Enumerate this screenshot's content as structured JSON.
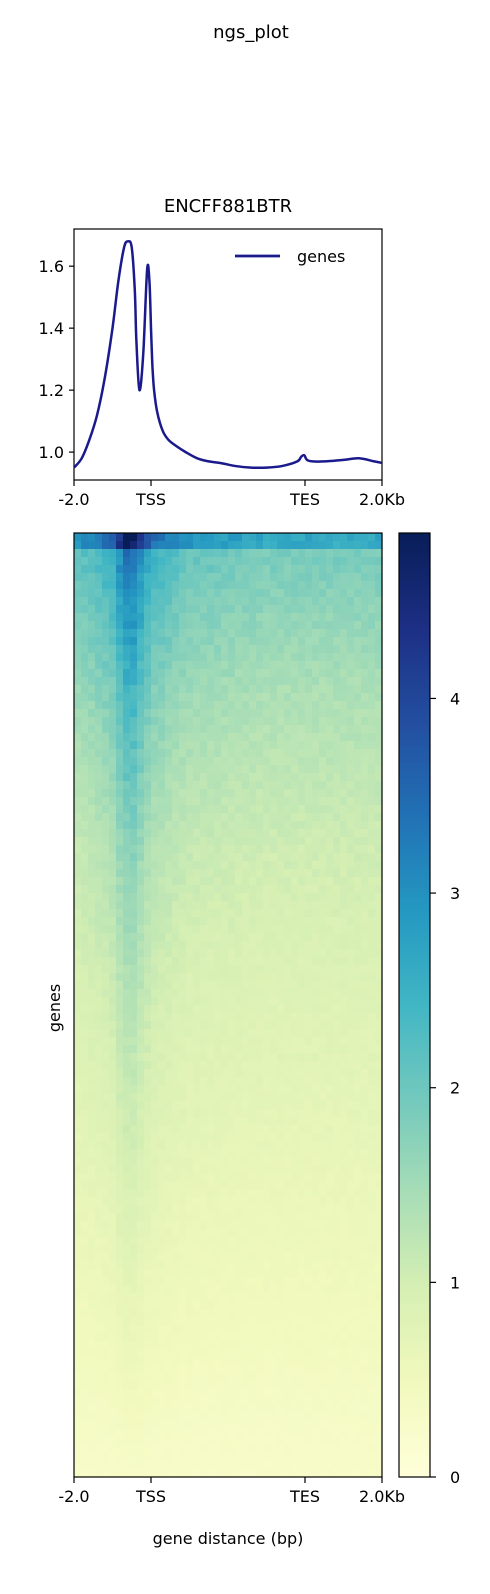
{
  "figure": {
    "suptitle": "ngs_plot"
  },
  "chart_data": [
    {
      "type": "line",
      "title": "ENCFF881BTR",
      "xlabel": "",
      "ylabel": "",
      "x_tick_labels": [
        "-2.0",
        "TSS",
        "TES",
        "2.0Kb"
      ],
      "x_tick_positions": [
        -2000,
        0,
        4000,
        6000
      ],
      "xlim": [
        -2000,
        6000
      ],
      "ylim": [
        0.91,
        1.72
      ],
      "y_ticks": [
        1.0,
        1.2,
        1.4,
        1.6
      ],
      "y_tick_labels": [
        "1.0",
        "1.2",
        "1.4",
        "1.6"
      ],
      "legend_position": "top-right",
      "series": [
        {
          "name": "genes",
          "color": "#1a1a8c",
          "x": [
            -2000,
            -1800,
            -1600,
            -1400,
            -1200,
            -1000,
            -850,
            -700,
            -600,
            -500,
            -420,
            -380,
            -300,
            -200,
            -100,
            -40,
            0,
            20,
            40,
            80,
            160,
            300,
            450,
            650,
            900,
            1200,
            1500,
            1800,
            2200,
            2600,
            3000,
            3400,
            3800,
            3900,
            3980,
            4050,
            4200,
            4500,
            5000,
            5400,
            5800,
            6000
          ],
          "y": [
            0.95,
            0.98,
            1.04,
            1.12,
            1.24,
            1.4,
            1.55,
            1.66,
            1.68,
            1.66,
            1.52,
            1.36,
            1.2,
            1.32,
            1.59,
            1.55,
            1.4,
            1.33,
            1.27,
            1.2,
            1.13,
            1.07,
            1.04,
            1.02,
            1.0,
            0.98,
            0.97,
            0.965,
            0.955,
            0.95,
            0.95,
            0.955,
            0.97,
            0.985,
            0.99,
            0.975,
            0.97,
            0.97,
            0.975,
            0.98,
            0.97,
            0.965
          ]
        }
      ]
    },
    {
      "type": "heatmap",
      "title": "",
      "xlabel": "gene distance (bp)",
      "ylabel": "genes",
      "x_tick_labels": [
        "-2.0",
        "TSS",
        "TES",
        "2.0Kb"
      ],
      "x_tick_positions": [
        -2000,
        0,
        4000,
        6000
      ],
      "xlim": [
        -2000,
        6000
      ],
      "colormap": "YlGnBu",
      "colorbar": {
        "min": 0,
        "max": 4.85,
        "ticks": [
          0,
          1,
          2,
          3,
          4
        ]
      },
      "description_rows_sorted": "genes sorted by signal, highest at top",
      "column_profile_top": {
        "x": [
          -2000,
          -1500,
          -1000,
          -700,
          -500,
          -300,
          -100,
          0,
          100,
          500,
          1000,
          2000,
          3000,
          4000,
          5000,
          6000
        ],
        "value": [
          2.0,
          2.2,
          2.5,
          3.3,
          3.4,
          3.0,
          2.7,
          2.1,
          2.4,
          2.2,
          2.0,
          1.9,
          1.8,
          1.8,
          1.8,
          1.8
        ]
      },
      "row_intensity_decay": [
        1.0,
        0.82,
        0.66,
        0.55,
        0.45,
        0.38,
        0.32,
        0.27,
        0.22,
        0.17,
        0.12,
        0.07,
        0.02
      ]
    }
  ]
}
